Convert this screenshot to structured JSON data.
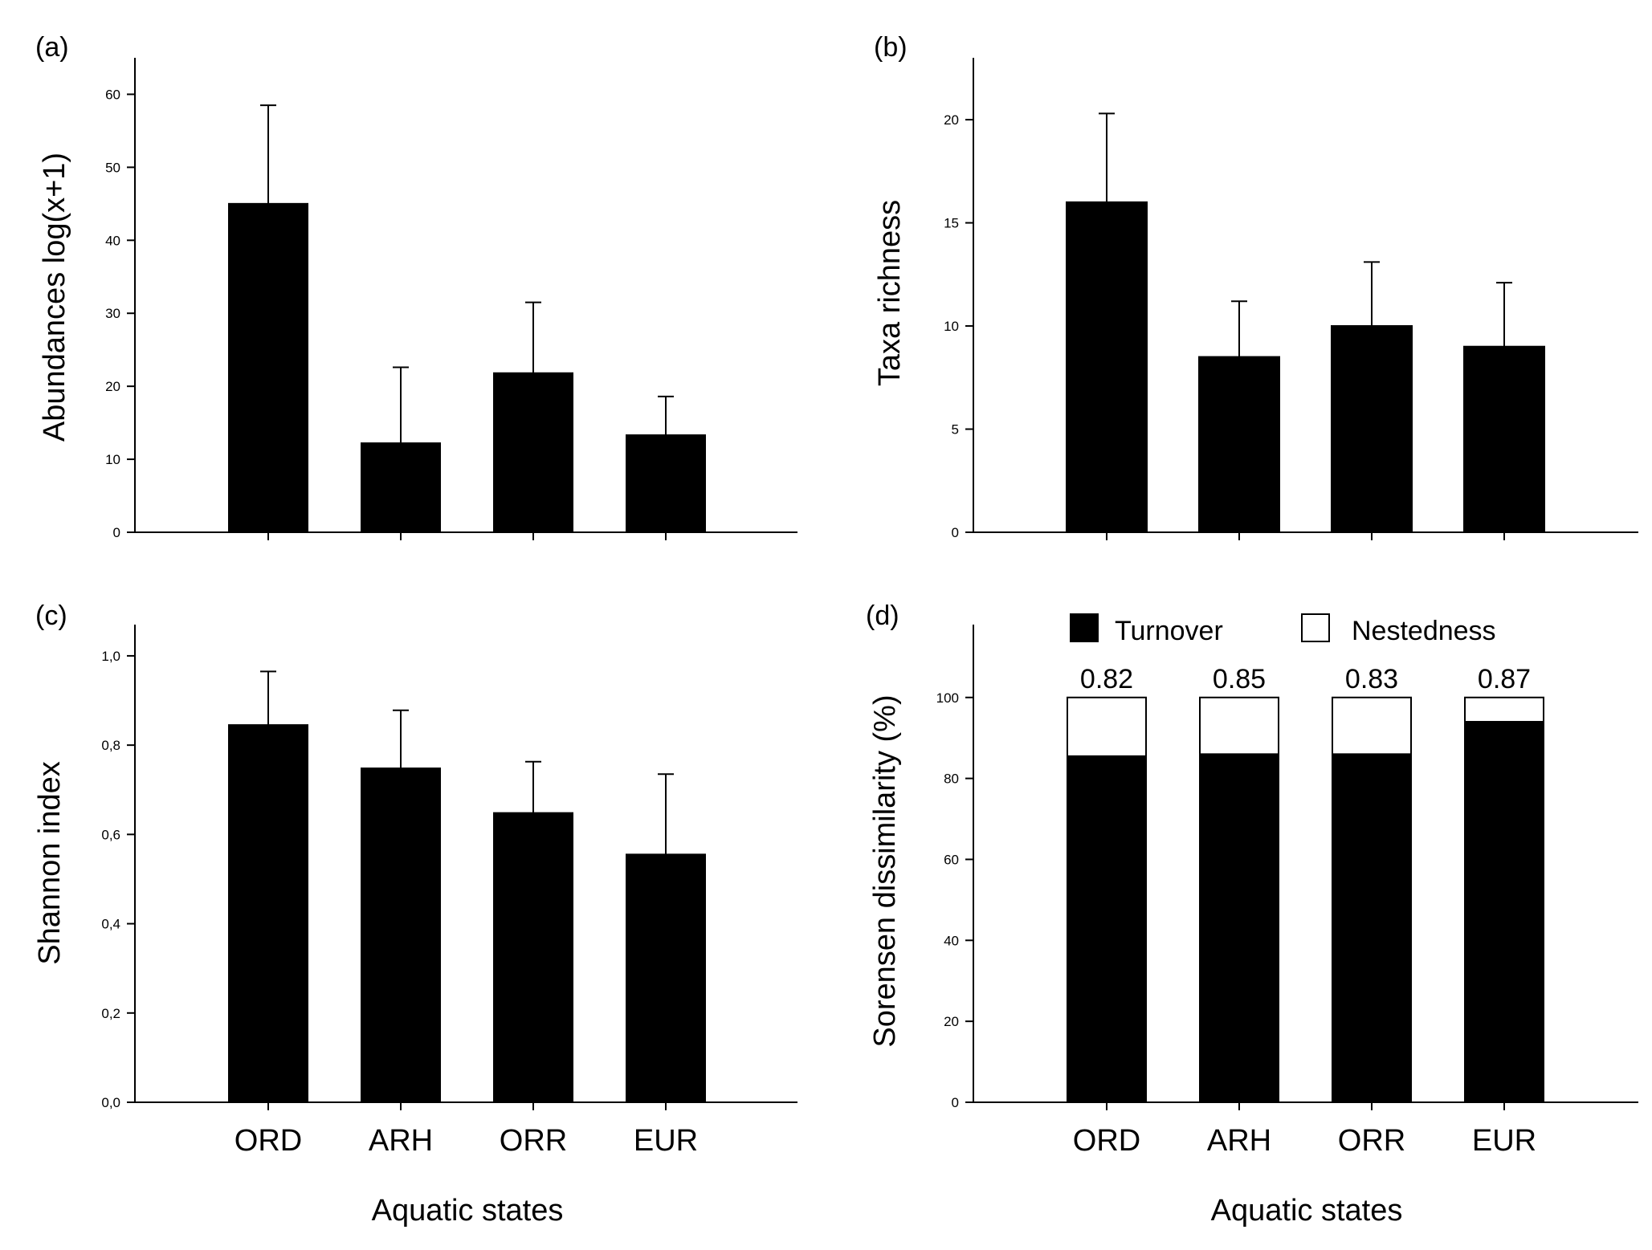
{
  "figure": {
    "shared_xlabel": "Aquatic states",
    "colors": {
      "bar": "#000000",
      "stack_top": "#ffffff",
      "axis": "#000000"
    }
  },
  "chart_data": [
    {
      "panel": "(a)",
      "type": "bar",
      "categories": [
        "ORD",
        "ARH",
        "ORR",
        "EUR"
      ],
      "values": [
        45,
        12.2,
        21.8,
        13.3
      ],
      "errors": [
        13.5,
        10.4,
        9.7,
        5.3
      ],
      "ylabel": "Abundances log(x+1)",
      "xlabel": "",
      "ylim": [
        0,
        65
      ],
      "yticks": [
        0,
        10,
        20,
        30,
        40,
        50,
        60
      ],
      "ytick_labels": [
        "0",
        "10",
        "20",
        "30",
        "40",
        "50",
        "60"
      ],
      "show_category_labels": false
    },
    {
      "panel": "(b)",
      "type": "bar",
      "categories": [
        "ORD",
        "ARH",
        "ORR",
        "EUR"
      ],
      "values": [
        16,
        8.5,
        10,
        9
      ],
      "errors": [
        4.3,
        2.7,
        3.1,
        3.1
      ],
      "ylabel": "Taxa richness",
      "xlabel": "",
      "ylim": [
        0,
        23
      ],
      "yticks": [
        0,
        5,
        10,
        15,
        20
      ],
      "ytick_labels": [
        "0",
        "5",
        "10",
        "15",
        "20"
      ],
      "show_category_labels": false
    },
    {
      "panel": "(c)",
      "type": "bar",
      "categories": [
        "ORD",
        "ARH",
        "ORR",
        "EUR"
      ],
      "values": [
        0.845,
        0.748,
        0.648,
        0.555
      ],
      "errors": [
        0.12,
        0.13,
        0.115,
        0.18
      ],
      "ylabel": "Shannon index",
      "xlabel": "Aquatic states",
      "ylim": [
        0,
        1.07
      ],
      "yticks": [
        0,
        0.2,
        0.4,
        0.6,
        0.8,
        1.0
      ],
      "ytick_labels": [
        "0,0",
        "0,2",
        "0,4",
        "0,6",
        "0,8",
        "1,0"
      ],
      "show_category_labels": true
    },
    {
      "panel": "(d)",
      "type": "bar",
      "stacked": true,
      "categories": [
        "ORD",
        "ARH",
        "ORR",
        "EUR"
      ],
      "series": [
        {
          "name": "Turnover",
          "values": [
            85.5,
            86,
            86,
            94
          ],
          "color": "#000000"
        },
        {
          "name": "Nestedness",
          "values": [
            14.5,
            14,
            14,
            6
          ],
          "color": "#ffffff"
        }
      ],
      "bar_labels": [
        "0.82",
        "0.85",
        "0.83",
        "0.87"
      ],
      "ylabel": "Sorensen dissimilarity (%)",
      "xlabel": "Aquatic states",
      "ylim": [
        0,
        118
      ],
      "yticks": [
        0,
        20,
        40,
        60,
        80,
        100
      ],
      "ytick_labels": [
        "0",
        "20",
        "40",
        "60",
        "80",
        "100"
      ],
      "legend_position": "top",
      "show_category_labels": true
    }
  ]
}
